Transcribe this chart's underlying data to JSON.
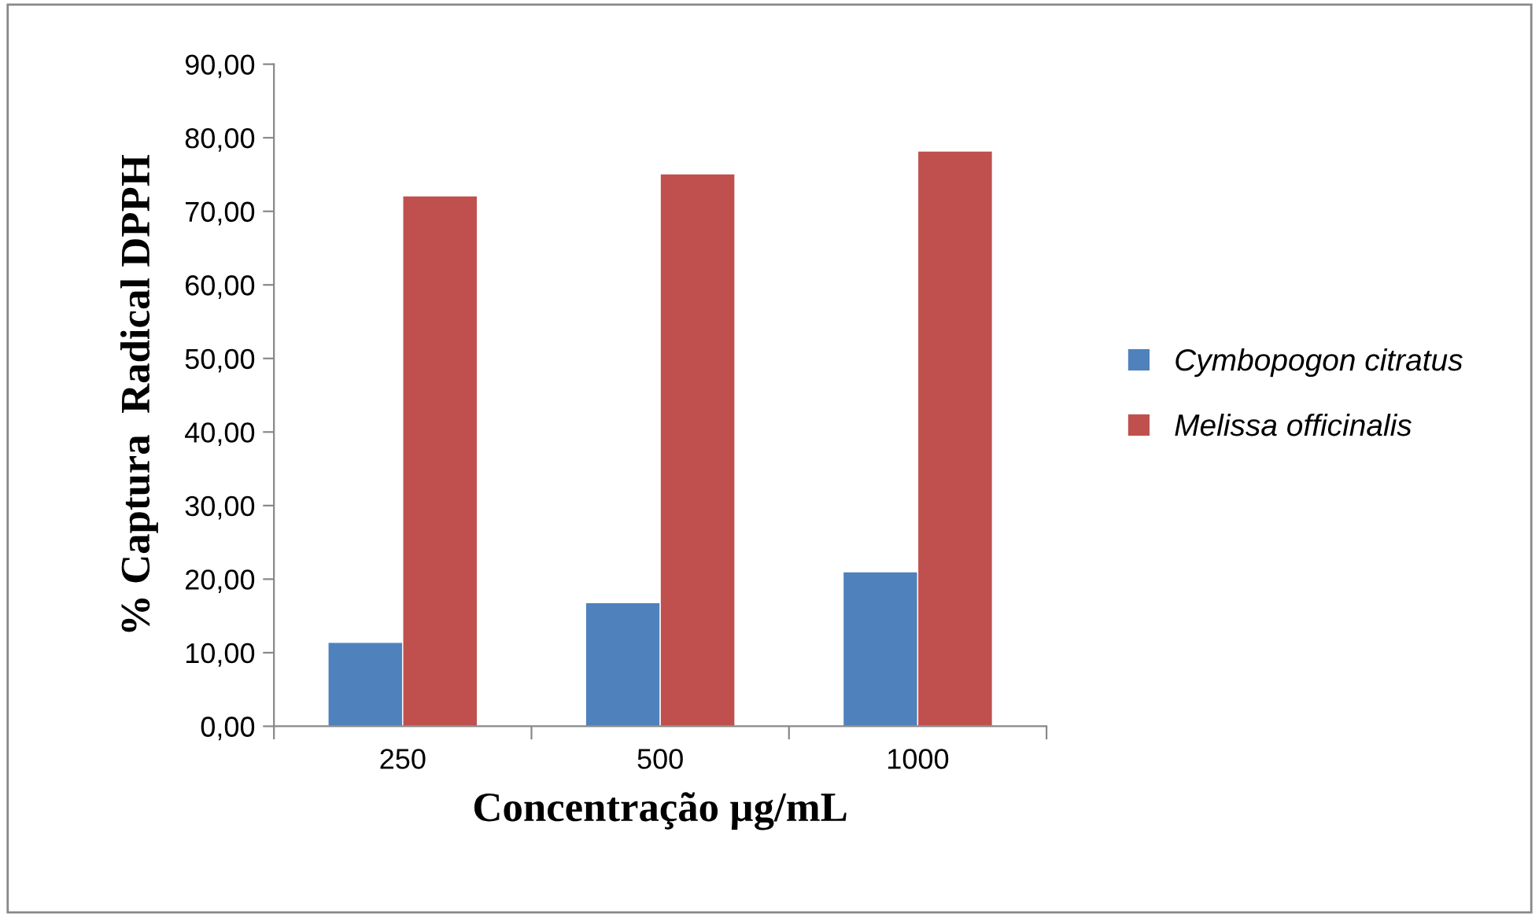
{
  "chart_data": {
    "type": "bar",
    "xlabel": "Concentração µg/mL",
    "ylabel": "% Captura  Radical DPPH",
    "categories": [
      "250",
      "500",
      "1000"
    ],
    "series": [
      {
        "name": "Cymbopogon citratus",
        "color": "#4f81bd",
        "values": [
          11.4,
          16.8,
          21.0
        ]
      },
      {
        "name": "Melissa officinalis",
        "color": "#c0504d",
        "values": [
          72.1,
          75.1,
          78.2
        ]
      }
    ],
    "ylim": [
      0,
      90
    ],
    "yticks": [
      {
        "value": 0,
        "label": "0,00"
      },
      {
        "value": 10,
        "label": "10,00"
      },
      {
        "value": 20,
        "label": "20,00"
      },
      {
        "value": 30,
        "label": "30,00"
      },
      {
        "value": 40,
        "label": "40,00"
      },
      {
        "value": 50,
        "label": "50,00"
      },
      {
        "value": 60,
        "label": "60,00"
      },
      {
        "value": 70,
        "label": "70,00"
      },
      {
        "value": 80,
        "label": "80,00"
      },
      {
        "value": 90,
        "label": "90,00"
      }
    ],
    "grid": false,
    "legend": "right"
  }
}
